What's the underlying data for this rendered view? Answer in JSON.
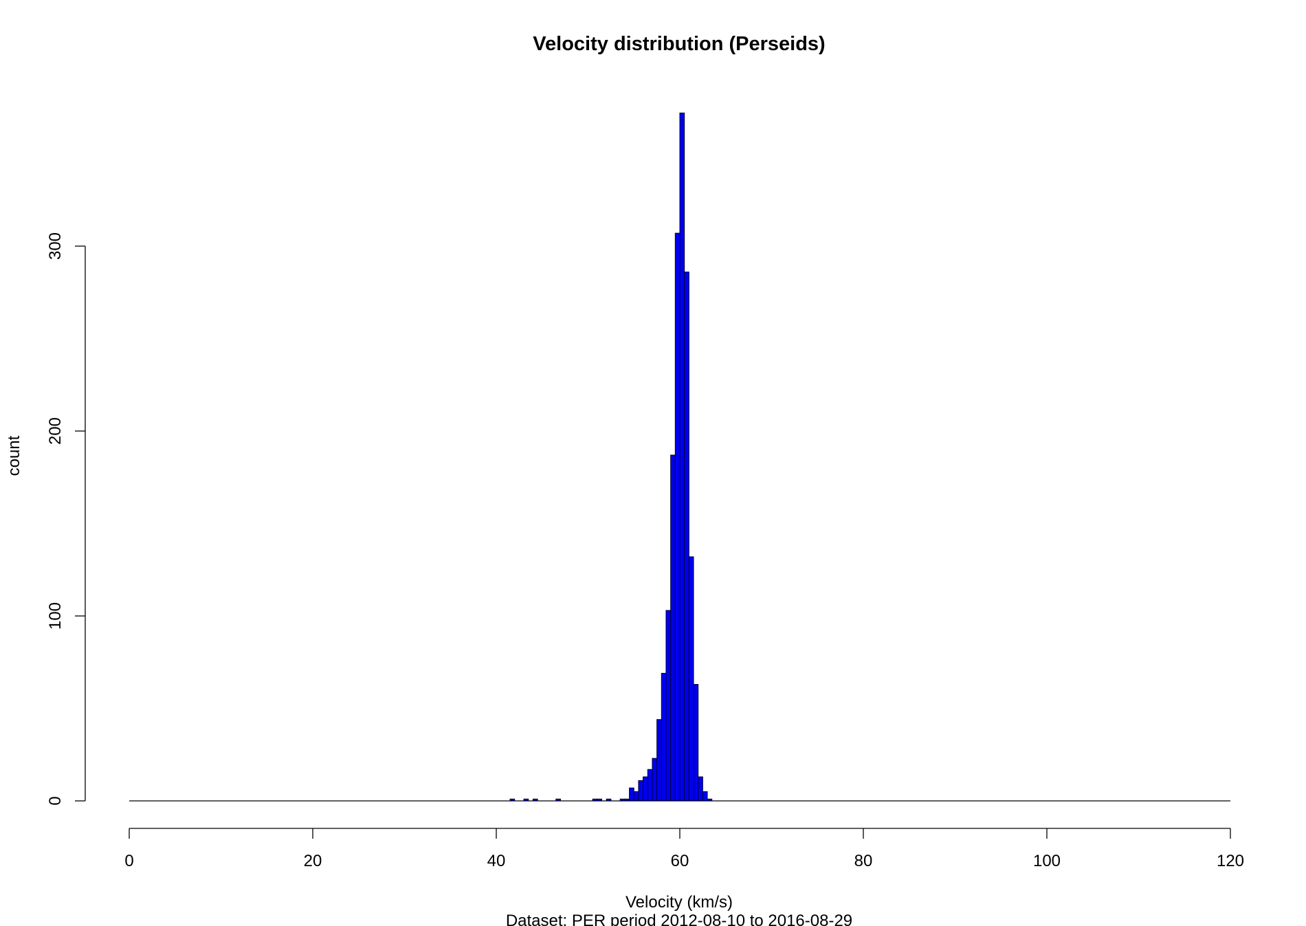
{
  "chart_data": {
    "type": "bar",
    "title": "Velocity distribution (Perseids)",
    "xlabel": "Velocity (km/s)",
    "ylabel": "count",
    "subtitle": "Dataset: PER period 2012-08-10 to 2016-08-29",
    "xlim": [
      0,
      120
    ],
    "ylim": [
      0,
      372
    ],
    "x_ticks": [
      0,
      20,
      40,
      60,
      80,
      100,
      120
    ],
    "y_ticks": [
      0,
      100,
      200,
      300
    ],
    "bin_width": 0.5,
    "bar_color": "#0000ee",
    "bar_edge_color": "#00003a",
    "grid": false,
    "legend": "none",
    "bins": [
      {
        "x": 41.75,
        "count": 1
      },
      {
        "x": 43.25,
        "count": 1
      },
      {
        "x": 44.25,
        "count": 1
      },
      {
        "x": 46.75,
        "count": 1
      },
      {
        "x": 50.75,
        "count": 1
      },
      {
        "x": 51.25,
        "count": 1
      },
      {
        "x": 52.25,
        "count": 1
      },
      {
        "x": 53.75,
        "count": 1
      },
      {
        "x": 54.25,
        "count": 1
      },
      {
        "x": 54.75,
        "count": 7
      },
      {
        "x": 55.25,
        "count": 5
      },
      {
        "x": 55.75,
        "count": 11
      },
      {
        "x": 56.25,
        "count": 13
      },
      {
        "x": 56.75,
        "count": 17
      },
      {
        "x": 57.25,
        "count": 23
      },
      {
        "x": 57.75,
        "count": 44
      },
      {
        "x": 58.25,
        "count": 69
      },
      {
        "x": 58.75,
        "count": 103
      },
      {
        "x": 59.25,
        "count": 187
      },
      {
        "x": 59.75,
        "count": 307
      },
      {
        "x": 60.25,
        "count": 372
      },
      {
        "x": 60.75,
        "count": 286
      },
      {
        "x": 61.25,
        "count": 132
      },
      {
        "x": 61.75,
        "count": 63
      },
      {
        "x": 62.25,
        "count": 13
      },
      {
        "x": 62.75,
        "count": 5
      },
      {
        "x": 63.25,
        "count": 1
      }
    ]
  }
}
